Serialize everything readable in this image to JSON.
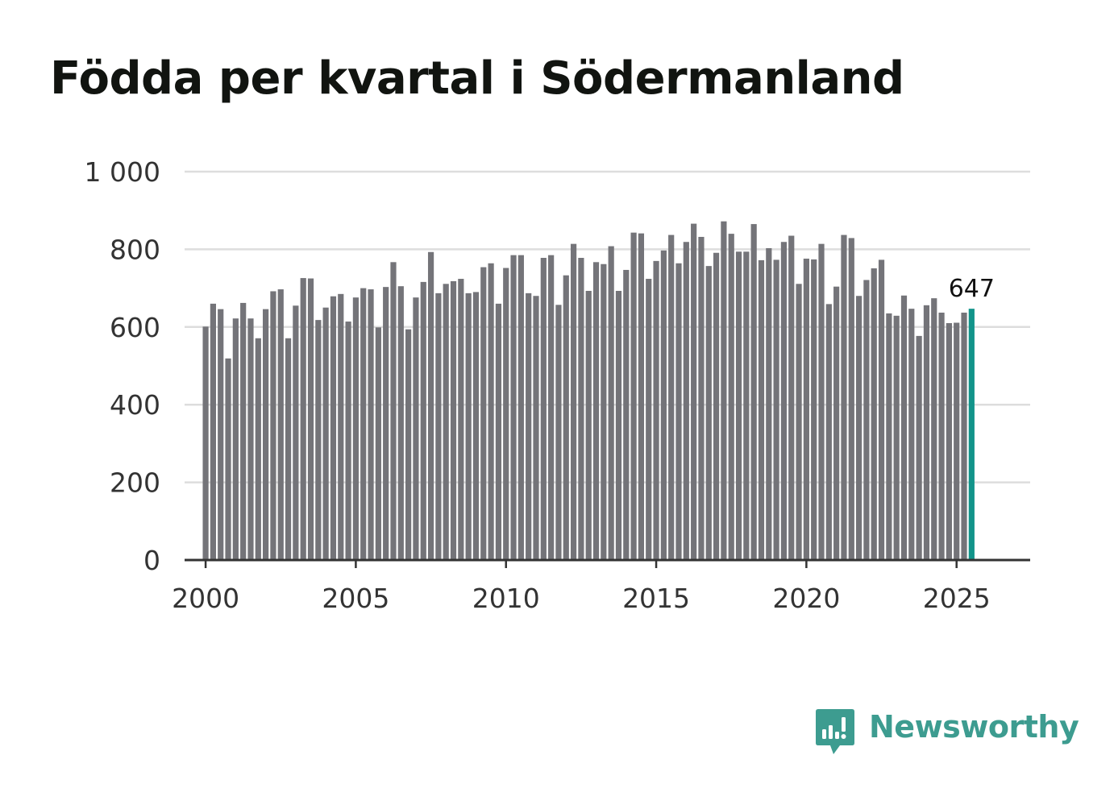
{
  "title": "Födda per kvartal i Södermanland",
  "logo_text": "Newsworthy",
  "colors": {
    "bar": "#747479",
    "highlight": "#12948a",
    "grid": "#dddddd",
    "axis": "#333333",
    "text": "#333333",
    "title": "#111410",
    "brand": "#3d9c90"
  },
  "chart_data": {
    "type": "bar",
    "title": "Födda per kvartal i Södermanland",
    "xlabel": "",
    "ylabel": "",
    "ylim": [
      0,
      1000
    ],
    "xlim": [
      1999.3,
      2027.45
    ],
    "y_ticks": [
      0,
      200,
      400,
      600,
      800,
      1000
    ],
    "y_tick_labels": [
      "0",
      "200",
      "400",
      "600",
      "800",
      "1 000"
    ],
    "x_ticks": [
      2000,
      2005,
      2010,
      2015,
      2020,
      2025
    ],
    "x_tick_labels": [
      "2000",
      "2005",
      "2010",
      "2015",
      "2020",
      "2025"
    ],
    "x_start": 2000.0,
    "x_step": 0.25,
    "categories_note": "quarters 2000 Q1 – 2025 Q3",
    "values": [
      601,
      660,
      646,
      519,
      622,
      662,
      622,
      571,
      646,
      692,
      697,
      571,
      655,
      726,
      725,
      618,
      650,
      679,
      685,
      614,
      676,
      700,
      697,
      599,
      703,
      767,
      705,
      594,
      676,
      716,
      793,
      687,
      711,
      718,
      724,
      687,
      690,
      754,
      764,
      660,
      752,
      785,
      785,
      687,
      680,
      778,
      785,
      657,
      733,
      814,
      778,
      693,
      767,
      762,
      808,
      693,
      747,
      843,
      841,
      724,
      770,
      797,
      837,
      764,
      819,
      866,
      832,
      757,
      791,
      872,
      840,
      794,
      794,
      865,
      772,
      803,
      773,
      819,
      835,
      711,
      776,
      774,
      814,
      659,
      704,
      837,
      829,
      680,
      721,
      751,
      773,
      635,
      629,
      681,
      647,
      577,
      656,
      674,
      637,
      610,
      611,
      637,
      647
    ],
    "highlight_index": 102,
    "highlight_label": "647"
  }
}
